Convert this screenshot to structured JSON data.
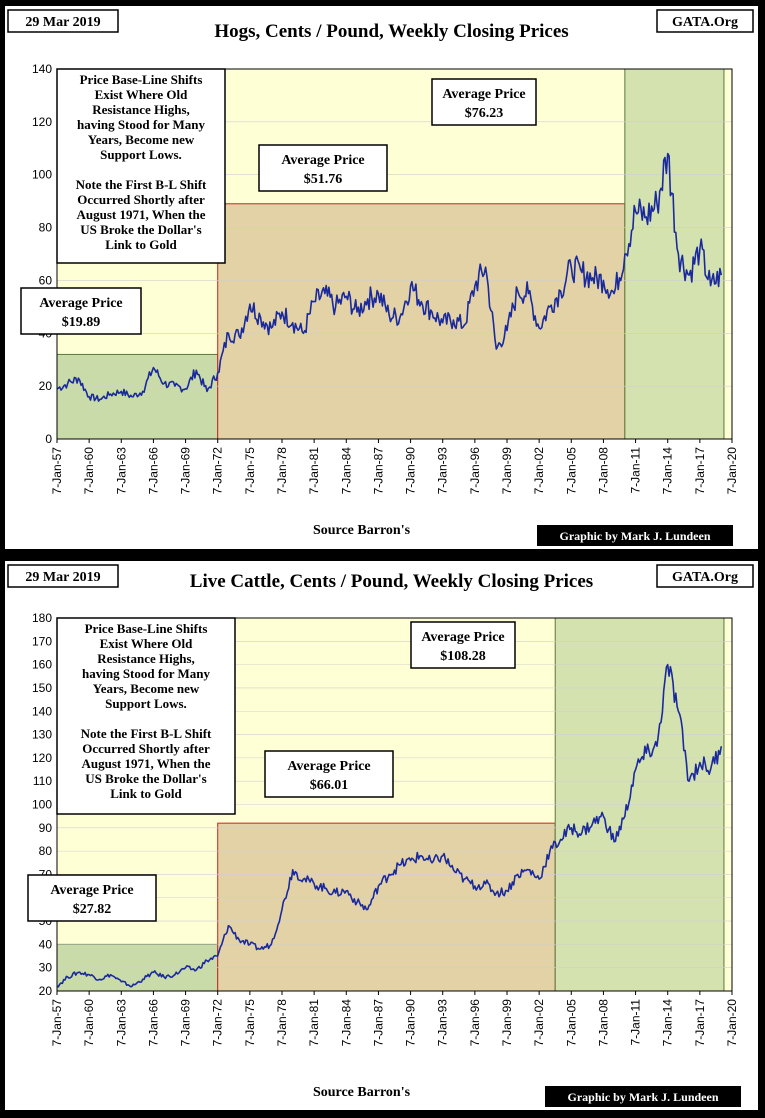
{
  "chart_data": [
    {
      "type": "line",
      "date": "29 Mar 2019",
      "title": "Hogs, Cents / Pound, Weekly Closing Prices",
      "brand": "GATA.Org",
      "source": "Source Barron's",
      "credit": "Graphic by Mark J. Lundeen",
      "ylim": [
        0,
        140
      ],
      "yticks": [
        0,
        20,
        40,
        60,
        80,
        100,
        120,
        140
      ],
      "xlim": [
        1957,
        2020
      ],
      "xticks": [
        "7-Jan-57",
        "7-Jan-60",
        "7-Jan-63",
        "7-Jan-66",
        "7-Jan-69",
        "7-Jan-72",
        "7-Jan-75",
        "7-Jan-78",
        "7-Jan-81",
        "7-Jan-84",
        "7-Jan-87",
        "7-Jan-90",
        "7-Jan-93",
        "7-Jan-96",
        "7-Jan-99",
        "7-Jan-02",
        "7-Jan-05",
        "7-Jan-08",
        "7-Jan-11",
        "7-Jan-14",
        "7-Jan-17",
        "7-Jan-20"
      ],
      "regions": [
        {
          "label": "Average Price",
          "value": "$19.89",
          "x0": 1957,
          "x1": 1972,
          "avg": 32,
          "color": "#c9dba8"
        },
        {
          "label": "Average Price",
          "value": "$51.76",
          "x0": 1972,
          "x1": 2010,
          "avg": 89,
          "color": "#e2d2a6"
        },
        {
          "label": "Average Price",
          "value": "$76.23",
          "x0": 2010,
          "x1": 2019.25,
          "avg": 140,
          "color": "#d4e2b0"
        }
      ],
      "note": [
        "Price Base-Line Shifts",
        "Exist Where Old",
        "Resistance Highs,",
        "having Stood for Many",
        "Years, Become new",
        "Support Lows.",
        "",
        "Note the First B-L Shift",
        "Occurred Shortly after",
        "August 1971, When the",
        "US Broke the Dollar's",
        "Link to Gold"
      ],
      "series": [
        {
          "name": "Hogs",
          "x": [
            1957,
            1958,
            1959,
            1960,
            1961,
            1962,
            1963,
            1964,
            1965,
            1966,
            1967,
            1968,
            1969,
            1970,
            1971,
            1972,
            1973,
            1974,
            1975,
            1976,
            1977,
            1978,
            1979,
            1980,
            1981,
            1982,
            1983,
            1984,
            1985,
            1986,
            1987,
            1988,
            1989,
            1990,
            1991,
            1992,
            1993,
            1994,
            1995,
            1996,
            1997,
            1998,
            1999,
            2000,
            2001,
            2002,
            2003,
            2004,
            2005,
            2006,
            2007,
            2008,
            2009,
            2010,
            2011,
            2012,
            2013,
            2014,
            2015,
            2016,
            2017,
            2018,
            2019
          ],
          "values": [
            19,
            21,
            23,
            16,
            15,
            17,
            18,
            16,
            18,
            27,
            21,
            20,
            19,
            26,
            18,
            25,
            40,
            39,
            51,
            46,
            42,
            48,
            44,
            40,
            52,
            55,
            50,
            54,
            48,
            53,
            55,
            47,
            46,
            58,
            52,
            48,
            44,
            45,
            43,
            58,
            65,
            34,
            41,
            56,
            55,
            42,
            50,
            56,
            65,
            63,
            61,
            60,
            55,
            70,
            86,
            84,
            89,
            108,
            70,
            62,
            72,
            58,
            62
          ]
        }
      ]
    },
    {
      "type": "line",
      "date": "29 Mar 2019",
      "title": "Live Cattle, Cents / Pound, Weekly Closing Prices",
      "brand": "GATA.Org",
      "source": "Source Barron's",
      "credit": "Graphic by Mark J. Lundeen",
      "ylim": [
        20,
        180
      ],
      "yticks": [
        20,
        30,
        40,
        50,
        60,
        70,
        80,
        90,
        100,
        110,
        120,
        130,
        140,
        150,
        160,
        170,
        180
      ],
      "xlim": [
        1957,
        2020
      ],
      "xticks": [
        "7-Jan-57",
        "7-Jan-60",
        "7-Jan-63",
        "7-Jan-66",
        "7-Jan-69",
        "7-Jan-72",
        "7-Jan-75",
        "7-Jan-78",
        "7-Jan-81",
        "7-Jan-84",
        "7-Jan-87",
        "7-Jan-90",
        "7-Jan-93",
        "7-Jan-96",
        "7-Jan-99",
        "7-Jan-02",
        "7-Jan-05",
        "7-Jan-08",
        "7-Jan-11",
        "7-Jan-14",
        "7-Jan-17",
        "7-Jan-20"
      ],
      "regions": [
        {
          "label": "Average Price",
          "value": "$27.82",
          "x0": 1957,
          "x1": 1972,
          "avg": 40,
          "color": "#c9dba8"
        },
        {
          "label": "Average Price",
          "value": "$66.01",
          "x0": 1972,
          "x1": 2003.5,
          "avg": 92,
          "color": "#e2d2a6"
        },
        {
          "label": "Average Price",
          "value": "$108.28",
          "x0": 2003.5,
          "x1": 2019.25,
          "avg": 180,
          "color": "#d4e2b0"
        }
      ],
      "note": [
        "Price Base-Line Shifts",
        "Exist Where Old",
        "Resistance Highs,",
        "having Stood for Many",
        "Years, Become new",
        "Support Lows.",
        "",
        "Note the First B-L Shift",
        "Occurred Shortly after",
        "August 1971, When the",
        "US Broke the Dollar's",
        "Link to Gold"
      ],
      "series": [
        {
          "name": "Live Cattle",
          "x": [
            1957,
            1958,
            1959,
            1960,
            1961,
            1962,
            1963,
            1964,
            1965,
            1966,
            1967,
            1968,
            1969,
            1970,
            1971,
            1972,
            1973,
            1974,
            1975,
            1976,
            1977,
            1978,
            1979,
            1980,
            1981,
            1982,
            1983,
            1984,
            1985,
            1986,
            1987,
            1988,
            1989,
            1990,
            1991,
            1992,
            1993,
            1994,
            1995,
            1996,
            1997,
            1998,
            1999,
            2000,
            2001,
            2002,
            2003,
            2004,
            2005,
            2006,
            2007,
            2008,
            2009,
            2010,
            2011,
            2012,
            2013,
            2014,
            2015,
            2016,
            2017,
            2018,
            2019
          ],
          "values": [
            22,
            26,
            28,
            27,
            25,
            27,
            24,
            22,
            25,
            28,
            26,
            27,
            30,
            29,
            33,
            35,
            48,
            42,
            40,
            38,
            40,
            55,
            72,
            68,
            66,
            64,
            62,
            63,
            58,
            55,
            65,
            70,
            74,
            76,
            78,
            75,
            78,
            72,
            68,
            65,
            66,
            62,
            63,
            70,
            72,
            68,
            80,
            85,
            90,
            88,
            92,
            95,
            84,
            95,
            115,
            122,
            125,
            160,
            140,
            110,
            118,
            115,
            125
          ]
        }
      ]
    }
  ]
}
